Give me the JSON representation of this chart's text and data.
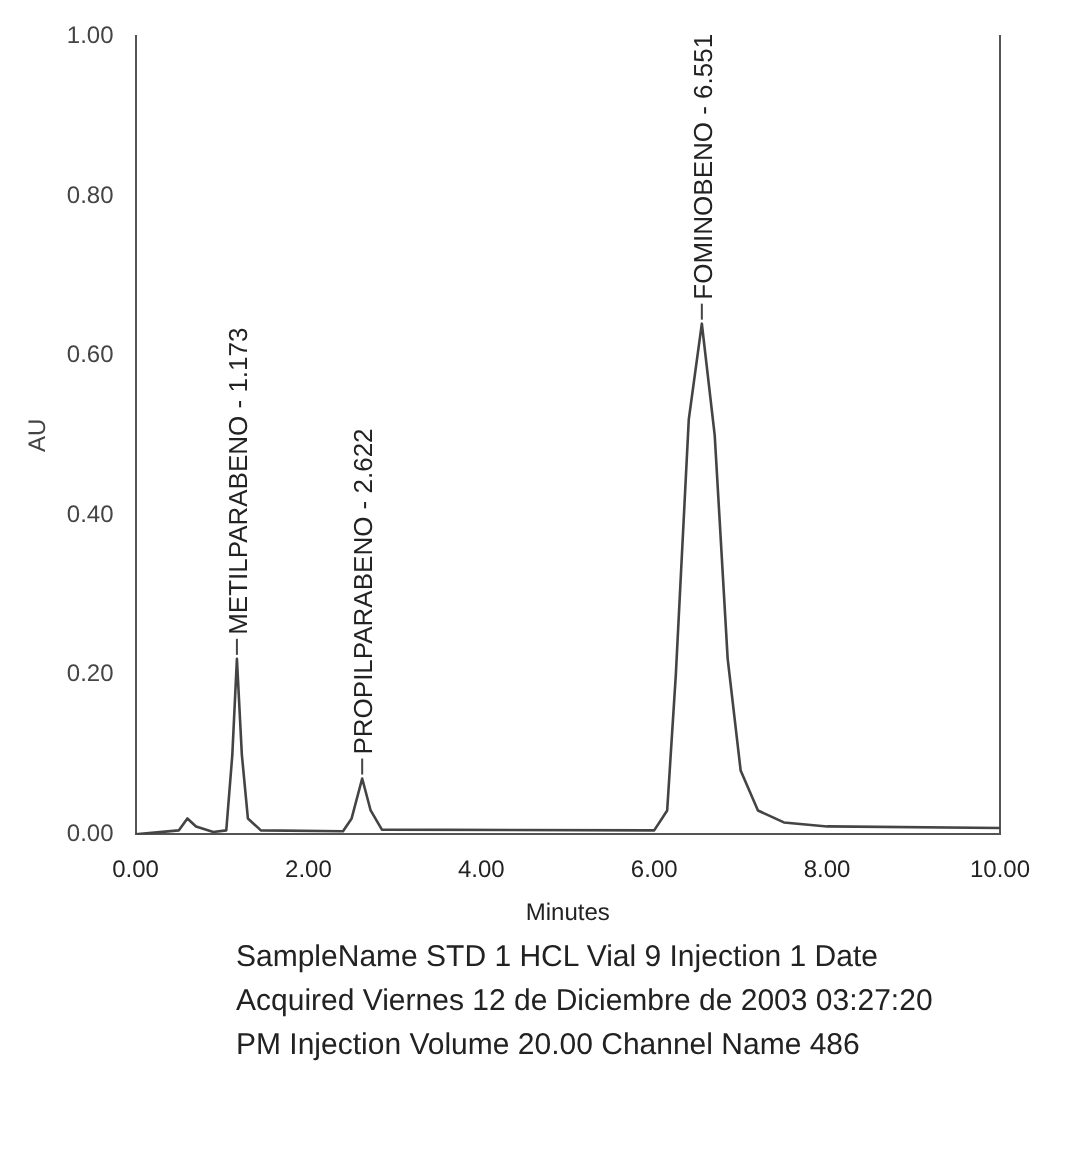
{
  "chart_data": {
    "type": "line",
    "xlabel": "Minutes",
    "ylabel": "AU",
    "x": [
      0,
      0.5,
      0.6,
      0.7,
      0.9,
      1.05,
      1.12,
      1.173,
      1.23,
      1.3,
      1.45,
      2.4,
      2.5,
      2.622,
      2.72,
      2.85,
      6.0,
      6.15,
      6.25,
      6.4,
      6.551,
      6.7,
      6.85,
      7.0,
      7.2,
      7.5,
      8.0,
      10.0
    ],
    "series": [
      {
        "color": "#444444",
        "values": [
          0,
          0.005,
          0.02,
          0.01,
          0.003,
          0.005,
          0.1,
          0.22,
          0.1,
          0.02,
          0.005,
          0.004,
          0.02,
          0.07,
          0.03,
          0.006,
          0.005,
          0.03,
          0.2,
          0.52,
          0.64,
          0.5,
          0.22,
          0.08,
          0.03,
          0.015,
          0.01,
          0.008
        ]
      }
    ],
    "xlim": [
      0,
      10
    ],
    "xticks": [
      {
        "value": 0,
        "label": "0.00"
      },
      {
        "value": 2,
        "label": "2.00"
      },
      {
        "value": 4,
        "label": "4.00"
      },
      {
        "value": 6,
        "label": "6.00"
      },
      {
        "value": 8,
        "label": "8.00"
      },
      {
        "value": 10,
        "label": "10.00"
      }
    ],
    "ylim": [
      0,
      1
    ],
    "yticks": [
      {
        "value": 0,
        "label": "0.00"
      },
      {
        "value": 0.2,
        "label": "0.20"
      },
      {
        "value": 0.4,
        "label": "0.40"
      },
      {
        "value": 0.6,
        "label": "0.60"
      },
      {
        "value": 0.8,
        "label": "0.80"
      },
      {
        "value": 1,
        "label": "1.00"
      }
    ],
    "grid": false,
    "legend": false,
    "marker": "none",
    "line_style": "solid",
    "annotations": [
      {
        "text": "METILPARABENO - 1.173",
        "x": 1.173,
        "y": 0.22
      },
      {
        "text": "PROPILPARABENO - 2.622",
        "x": 2.622,
        "y": 0.07
      },
      {
        "text": "FOMINOBENO - 6.551",
        "x": 6.551,
        "y": 0.64
      },
      "SampleName STD 1 HCL Vial 9 Injection 1 Date Acquired Viernes 12 de Diciembre de 2003 03:27:20 PM Injection Volume 20.00 Channel Name 486"
    ]
  }
}
